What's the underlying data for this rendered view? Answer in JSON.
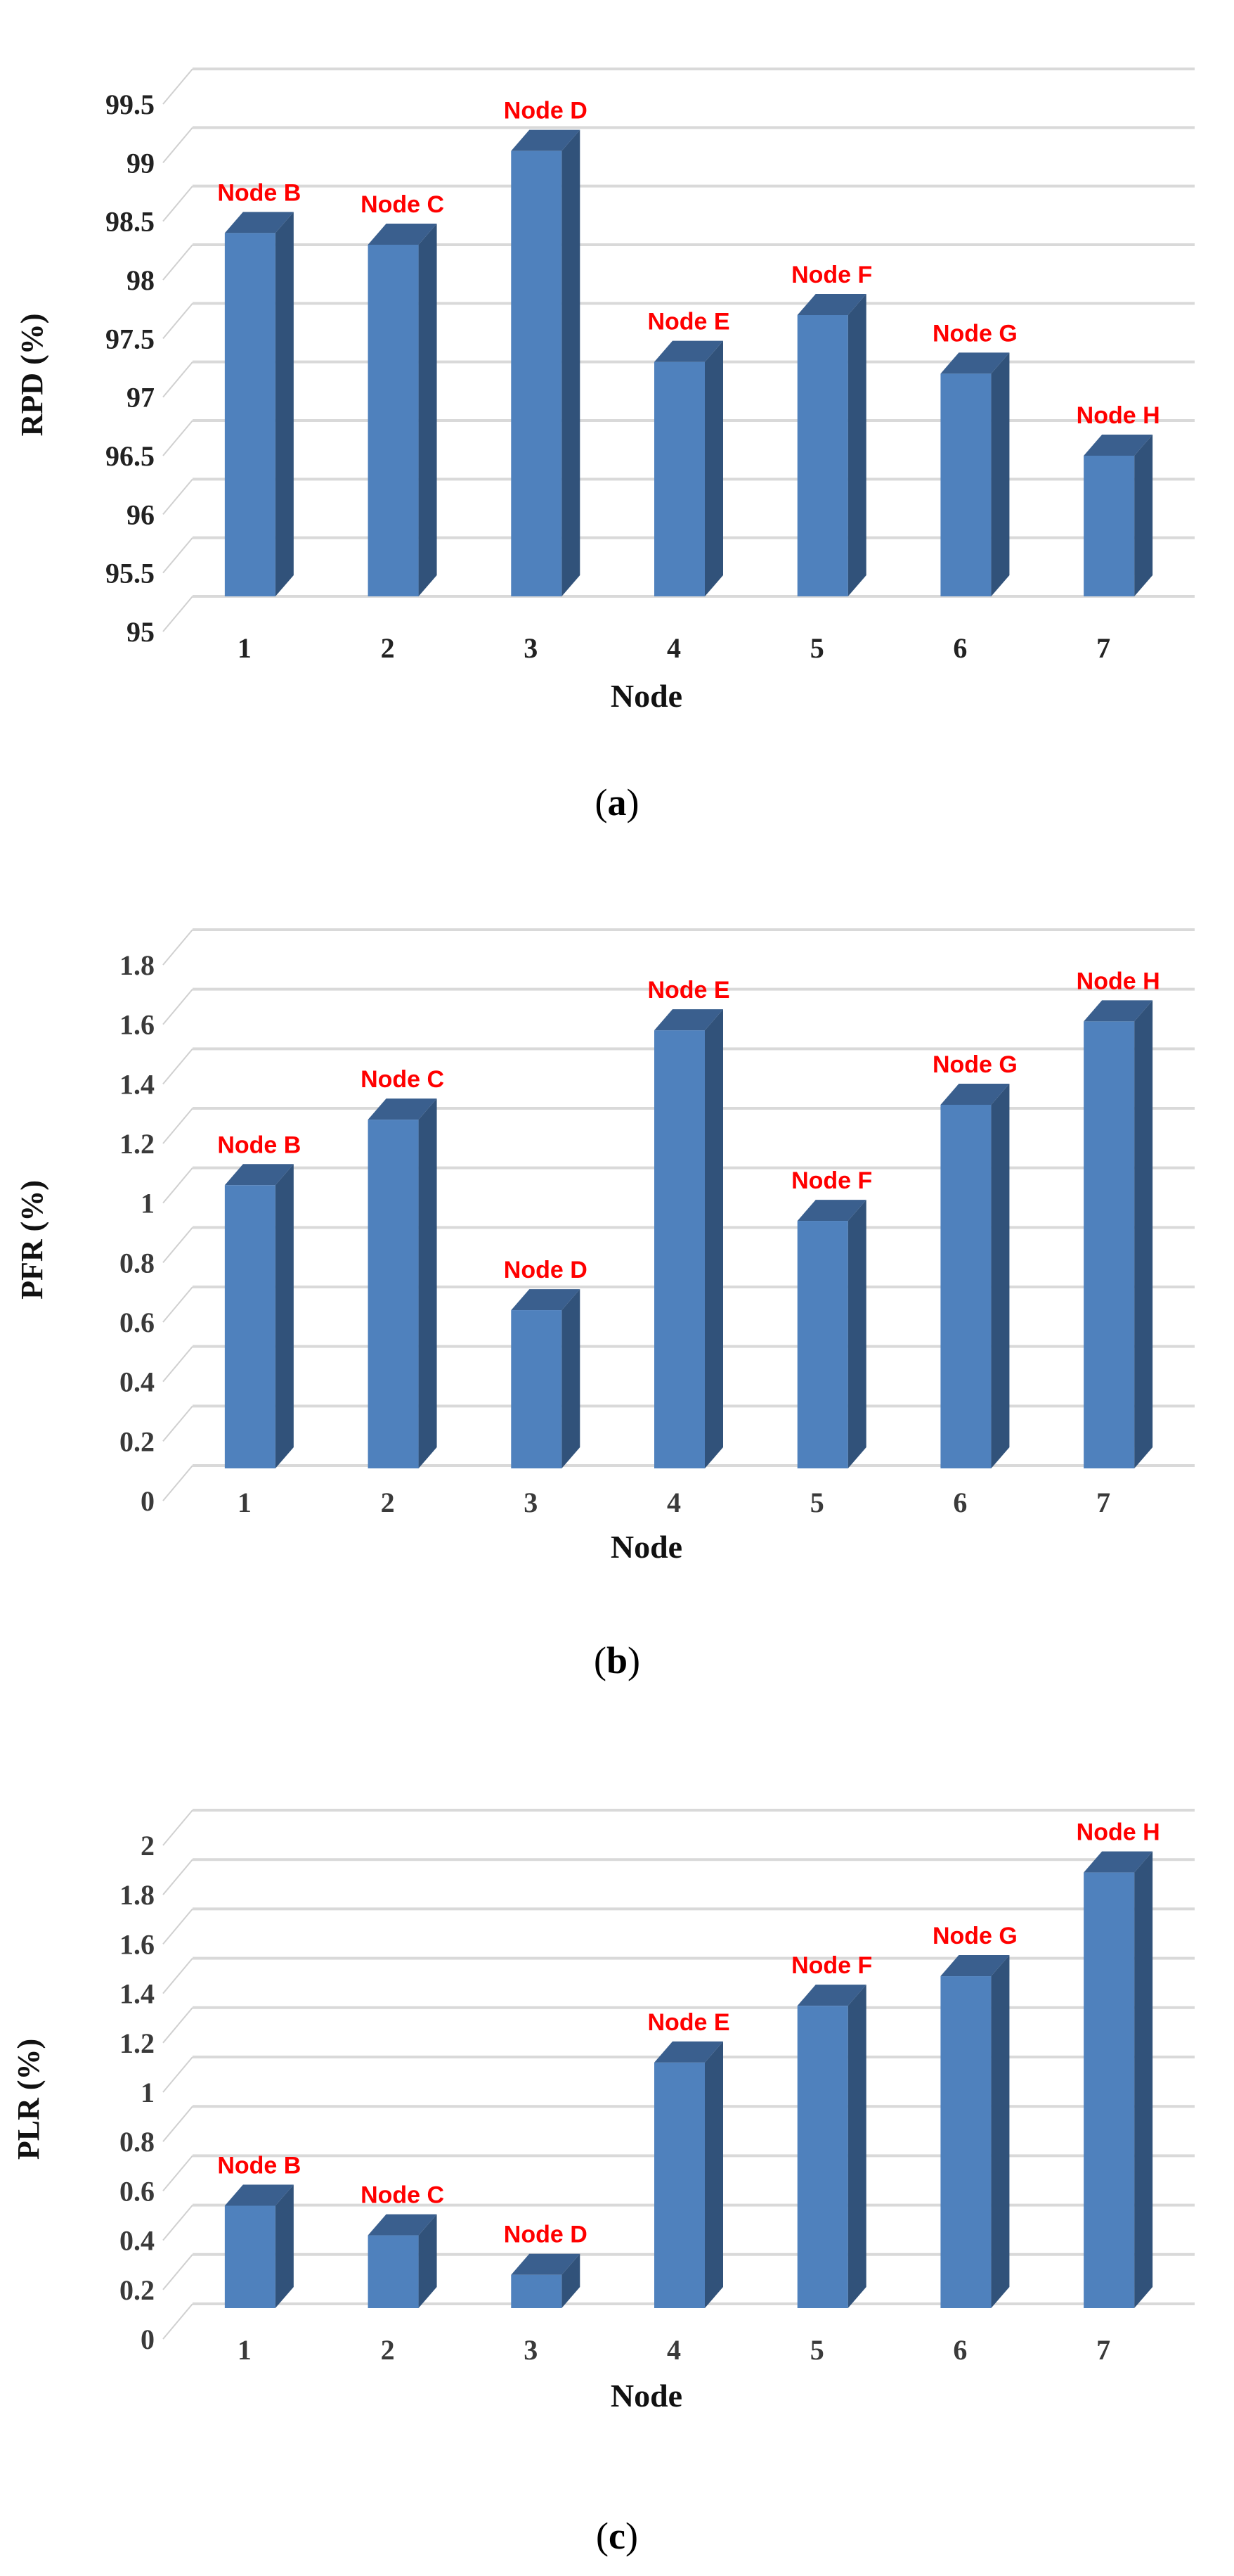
{
  "figure": {
    "panels": [
      {
        "id": "a",
        "caption_open": "(",
        "caption_letter": "a",
        "caption_close": ")"
      },
      {
        "id": "b",
        "caption_open": "(",
        "caption_letter": "b",
        "caption_close": ")"
      },
      {
        "id": "c",
        "caption_open": "(",
        "caption_letter": "c",
        "caption_close": ")"
      }
    ]
  },
  "colors": {
    "bar_front": "#4f81bd",
    "bar_side": "#31527a",
    "bar_top": "#3a5f8e",
    "label_red": "#ff0000",
    "gridline": "#d9d9d9"
  },
  "chart_data": [
    {
      "type": "bar",
      "style": "3d-column",
      "title": "",
      "panel": "(a)",
      "xlabel": "Node",
      "ylabel": "RPD (%)",
      "categories": [
        "1",
        "2",
        "3",
        "4",
        "5",
        "6",
        "7"
      ],
      "bar_labels": [
        "Node B",
        "Node C",
        "Node D",
        "Node E",
        "Node F",
        "Node G",
        "Node H"
      ],
      "values": [
        98.4,
        98.3,
        99.1,
        97.3,
        97.7,
        97.2,
        96.5
      ],
      "ylim": [
        95,
        99.5
      ],
      "yticks": [
        "95",
        "95.5",
        "96",
        "96.5",
        "97",
        "97.5",
        "98",
        "98.5",
        "99",
        "99.5"
      ],
      "grid": true,
      "legend": null
    },
    {
      "type": "bar",
      "style": "3d-column",
      "title": "",
      "panel": "(b)",
      "xlabel": "Node",
      "ylabel": "PFR (%)",
      "categories": [
        "1",
        "2",
        "3",
        "4",
        "5",
        "6",
        "7"
      ],
      "bar_labels": [
        "Node B",
        "Node C",
        "Node D",
        "Node E",
        "Node F",
        "Node G",
        "Node H"
      ],
      "values": [
        1.06,
        1.28,
        0.64,
        1.58,
        0.94,
        1.33,
        1.61
      ],
      "ylim": [
        0,
        1.8
      ],
      "yticks": [
        "0",
        "0.2",
        "0.4",
        "0.6",
        "0.8",
        "1",
        "1.2",
        "1.4",
        "1.6",
        "1.8"
      ],
      "grid": true,
      "legend": null
    },
    {
      "type": "bar",
      "style": "3d-column",
      "title": "",
      "panel": "(c)",
      "xlabel": "Node",
      "ylabel": "PLR (%)",
      "categories": [
        "1",
        "2",
        "3",
        "4",
        "5",
        "6",
        "7"
      ],
      "bar_labels": [
        "Node B",
        "Node C",
        "Node D",
        "Node E",
        "Node F",
        "Node G",
        "Node H"
      ],
      "values": [
        0.54,
        0.42,
        0.26,
        1.12,
        1.35,
        1.47,
        1.89
      ],
      "ylim": [
        0,
        2
      ],
      "yticks": [
        "0",
        "0.2",
        "0.4",
        "0.6",
        "0.8",
        "1",
        "1.2",
        "1.4",
        "1.6",
        "1.8",
        "2"
      ],
      "grid": true,
      "legend": null
    }
  ]
}
